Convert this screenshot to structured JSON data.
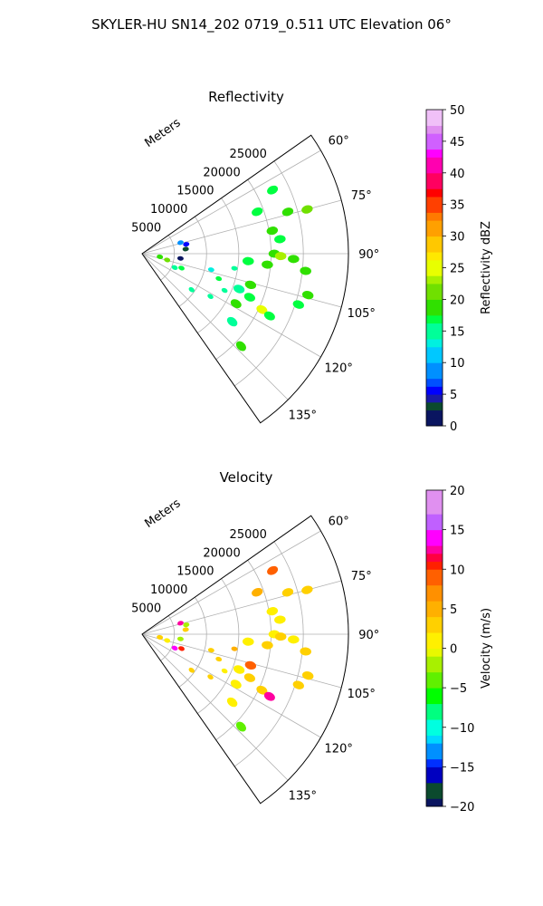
{
  "suptitle": "SKYLER-HU  SN14_202  0719_0.511 UTC Elevation 06°",
  "chart_data": [
    {
      "type": "polar-sector",
      "title": "Reflectivity",
      "ylabel": "Meters",
      "r_ticks": [
        5000,
        10000,
        15000,
        20000,
        25000
      ],
      "r_tick_labels": [
        "5000",
        "10000",
        "15000",
        "20000",
        "25000"
      ],
      "rlim": [
        0,
        32000
      ],
      "theta_ticks": [
        60,
        75,
        90,
        105,
        120,
        135
      ],
      "theta_tick_labels": [
        "60°",
        "75°",
        "90°",
        "105°",
        "120°",
        "135°"
      ],
      "thetalim": [
        55,
        145
      ],
      "grid": true,
      "colorbar": {
        "label": "Reflectivity dBZ",
        "range": [
          0,
          50
        ],
        "ticks": [
          "0",
          "5",
          "10",
          "15",
          "20",
          "25",
          "30",
          "35",
          "40",
          "45",
          "50"
        ]
      },
      "series": [
        {
          "points": [
            {
              "az": 64.0,
              "range": 22500,
              "value": 16
            },
            {
              "az": 70.0,
              "range": 19000,
              "value": 17
            },
            {
              "az": 74.0,
              "range": 23500,
              "value": 18
            },
            {
              "az": 75.0,
              "range": 26500,
              "value": 20
            },
            {
              "az": 80.0,
              "range": 20500,
              "value": 18
            },
            {
              "az": 84.0,
              "range": 21500,
              "value": 17
            },
            {
              "az": 90.0,
              "range": 20500,
              "value": 19
            },
            {
              "az": 91.0,
              "range": 21500,
              "value": 22
            },
            {
              "az": 92.0,
              "range": 23500,
              "value": 18
            },
            {
              "az": 94.0,
              "range": 16500,
              "value": 16
            },
            {
              "az": 95.0,
              "range": 19500,
              "value": 18
            },
            {
              "az": 96.0,
              "range": 25500,
              "value": 18
            },
            {
              "az": 99.0,
              "range": 14500,
              "value": 15
            },
            {
              "az": 103.0,
              "range": 11000,
              "value": 12
            },
            {
              "az": 104.0,
              "range": 26500,
              "value": 19
            },
            {
              "az": 106.0,
              "range": 17500,
              "value": 18
            },
            {
              "az": 108.0,
              "range": 12500,
              "value": 16
            },
            {
              "az": 108.0,
              "range": 25500,
              "value": 17
            },
            {
              "az": 110.0,
              "range": 16000,
              "value": 15
            },
            {
              "az": 112.0,
              "range": 18000,
              "value": 16
            },
            {
              "az": 114.0,
              "range": 14000,
              "value": 15
            },
            {
              "az": 115.0,
              "range": 20500,
              "value": 24
            },
            {
              "az": 116.0,
              "range": 22000,
              "value": 17
            },
            {
              "az": 118.0,
              "range": 16500,
              "value": 19
            },
            {
              "az": 122.0,
              "range": 12500,
              "value": 15
            },
            {
              "az": 126.0,
              "range": 9500,
              "value": 14
            },
            {
              "az": 127.0,
              "range": 17500,
              "value": 14
            },
            {
              "az": 133.0,
              "range": 21000,
              "value": 18
            },
            {
              "az": 110.0,
              "range": 6500,
              "value": 16
            },
            {
              "az": 113.0,
              "range": 5500,
              "value": 15
            },
            {
              "az": 100.0,
              "range": 2800,
              "value": 18
            },
            {
              "az": 104.0,
              "range": 4000,
              "value": 20
            },
            {
              "az": 78.0,
              "range": 7000,
              "value": 5
            },
            {
              "az": 74.0,
              "range": 6200,
              "value": 8
            },
            {
              "az": 84.0,
              "range": 6800,
              "value": 3
            },
            {
              "az": 97.0,
              "range": 6000,
              "value": 1
            }
          ]
        }
      ]
    },
    {
      "type": "polar-sector",
      "title": "Velocity",
      "ylabel": "Meters",
      "r_ticks": [
        5000,
        10000,
        15000,
        20000,
        25000
      ],
      "r_tick_labels": [
        "5000",
        "10000",
        "15000",
        "20000",
        "25000"
      ],
      "rlim": [
        0,
        32000
      ],
      "theta_ticks": [
        60,
        75,
        90,
        105,
        120,
        135
      ],
      "theta_tick_labels": [
        "60°",
        "75°",
        "90°",
        "105°",
        "120°",
        "135°"
      ],
      "thetalim": [
        55,
        145
      ],
      "grid": true,
      "colorbar": {
        "label": "Velocity (m/s)",
        "range": [
          -20,
          20
        ],
        "ticks": [
          "−20",
          "−15",
          "−10",
          "−5",
          "0",
          "5",
          "10",
          "15",
          "20"
        ]
      },
      "series": [
        {
          "points": [
            {
              "az": 64.0,
              "range": 22500,
              "value": 8
            },
            {
              "az": 70.0,
              "range": 19000,
              "value": 5
            },
            {
              "az": 74.0,
              "range": 23500,
              "value": 2
            },
            {
              "az": 75.0,
              "range": 26500,
              "value": 2
            },
            {
              "az": 80.0,
              "range": 20500,
              "value": 1
            },
            {
              "az": 84.0,
              "range": 21500,
              "value": 1
            },
            {
              "az": 90.0,
              "range": 20500,
              "value": 1
            },
            {
              "az": 91.0,
              "range": 21500,
              "value": 2
            },
            {
              "az": 92.0,
              "range": 23500,
              "value": 1
            },
            {
              "az": 94.0,
              "range": 16500,
              "value": 1
            },
            {
              "az": 95.0,
              "range": 19500,
              "value": 2
            },
            {
              "az": 96.0,
              "range": 25500,
              "value": 2
            },
            {
              "az": 99.0,
              "range": 14500,
              "value": 4
            },
            {
              "az": 103.0,
              "range": 11000,
              "value": 3
            },
            {
              "az": 104.0,
              "range": 26500,
              "value": 2
            },
            {
              "az": 106.0,
              "range": 17500,
              "value": 9
            },
            {
              "az": 108.0,
              "range": 12500,
              "value": 3
            },
            {
              "az": 108.0,
              "range": 25500,
              "value": 2
            },
            {
              "az": 110.0,
              "range": 16000,
              "value": 1
            },
            {
              "az": 112.0,
              "range": 18000,
              "value": 2
            },
            {
              "az": 114.0,
              "range": 14000,
              "value": 1
            },
            {
              "az": 115.0,
              "range": 20500,
              "value": 2
            },
            {
              "az": 116.0,
              "range": 22000,
              "value": 12
            },
            {
              "az": 118.0,
              "range": 16500,
              "value": 1
            },
            {
              "az": 122.0,
              "range": 12500,
              "value": 2
            },
            {
              "az": 126.0,
              "range": 9500,
              "value": 3
            },
            {
              "az": 127.0,
              "range": 17500,
              "value": 1
            },
            {
              "az": 133.0,
              "range": 21000,
              "value": -5
            },
            {
              "az": 110.0,
              "range": 6500,
              "value": 10
            },
            {
              "az": 113.0,
              "range": 5500,
              "value": 14
            },
            {
              "az": 100.0,
              "range": 2800,
              "value": 2
            },
            {
              "az": 104.0,
              "range": 4000,
              "value": 1
            },
            {
              "az": 78.0,
              "range": 7000,
              "value": -3
            },
            {
              "az": 74.0,
              "range": 6200,
              "value": 12
            },
            {
              "az": 84.0,
              "range": 6800,
              "value": 2
            },
            {
              "az": 97.0,
              "range": 6000,
              "value": -2
            }
          ]
        }
      ]
    }
  ]
}
